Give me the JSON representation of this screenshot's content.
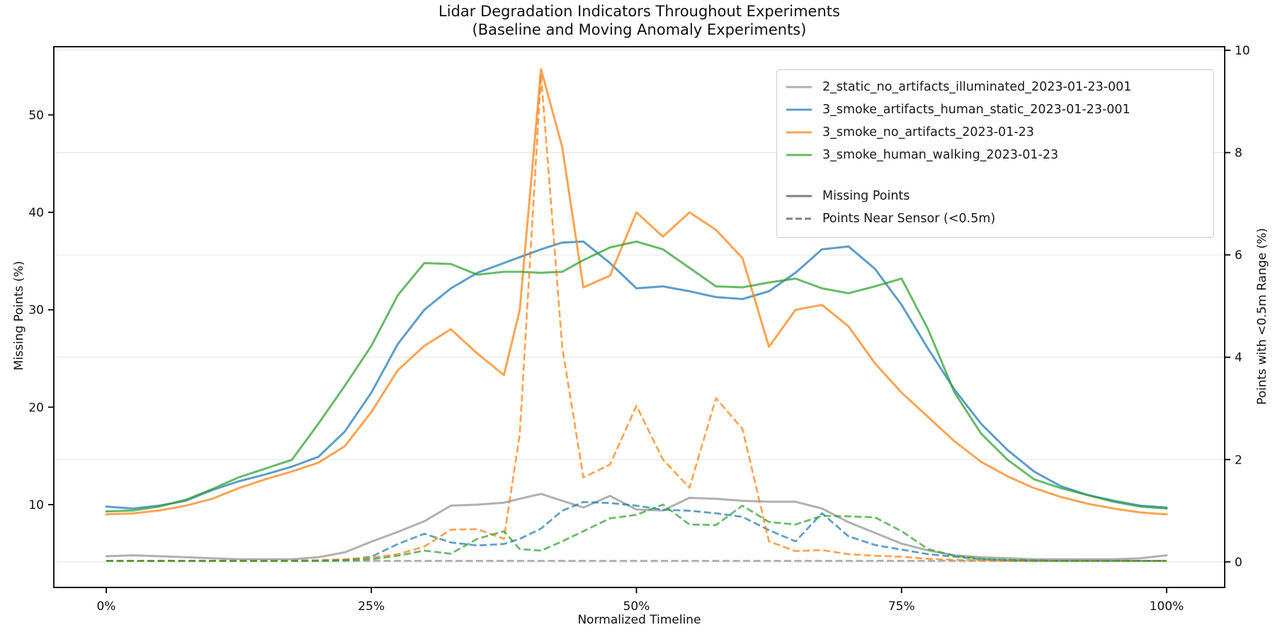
{
  "chart_data": {
    "type": "line",
    "title": "Lidar Degradation Indicators Throughout Experiments",
    "subtitle": "(Baseline and Moving Anomaly Experiments)",
    "xlabel": "Normalized Timeline",
    "ylabel_left": "Missing Points (%)",
    "ylabel_right": "Points with <0.5m Range (%)",
    "x_tick_labels": [
      "0%",
      "25%",
      "50%",
      "75%",
      "100%"
    ],
    "x_tick_values": [
      0,
      25,
      50,
      75,
      100
    ],
    "y_left_ticks": [
      10,
      20,
      30,
      40,
      50
    ],
    "y_left_range": [
      1.5,
      57.0
    ],
    "y_right_ticks": [
      0,
      2,
      4,
      6,
      8,
      10
    ],
    "y_right_range": [
      -0.5,
      10.07
    ],
    "grid": "horizontal gridlines aligned to right-axis ticks",
    "legend_position": "upper right",
    "style_legend": [
      {
        "label": "Missing Points",
        "style": "solid",
        "color": "#808080"
      },
      {
        "label": "Points Near Sensor (<0.5m)",
        "style": "dashed",
        "color": "#808080"
      }
    ],
    "x": [
      0,
      2.5,
      5,
      7.5,
      10,
      12.5,
      15,
      17.5,
      20,
      22.5,
      25,
      27.5,
      30,
      32.5,
      35,
      37.5,
      39,
      41,
      43,
      45,
      47.5,
      50,
      52.5,
      55,
      57.5,
      60,
      62.5,
      65,
      67.5,
      70,
      72.5,
      75,
      77.5,
      80,
      82.5,
      85,
      87.5,
      90,
      92.5,
      95,
      97.5,
      100
    ],
    "series": [
      {
        "name": "2_static_no_artifacts_illuminated_2023-01-23-001",
        "color": "#7f7f7f",
        "opacity": 0.62,
        "missing_points": [
          4.7,
          4.8,
          4.7,
          4.6,
          4.5,
          4.4,
          4.4,
          4.4,
          4.6,
          5.1,
          6.2,
          7.2,
          8.3,
          9.9,
          10.0,
          10.2,
          10.6,
          11.1,
          10.4,
          9.7,
          10.9,
          9.5,
          9.4,
          10.7,
          10.6,
          10.4,
          10.3,
          10.3,
          9.6,
          8.2,
          7.1,
          6.0,
          5.3,
          4.8,
          4.6,
          4.5,
          4.4,
          4.4,
          4.4,
          4.4,
          4.5,
          4.8
        ],
        "points_near_sensor": [
          0.02,
          0.02,
          0.02,
          0.02,
          0.02,
          0.02,
          0.02,
          0.02,
          0.02,
          0.02,
          0.02,
          0.02,
          0.02,
          0.02,
          0.02,
          0.02,
          0.02,
          0.02,
          0.02,
          0.02,
          0.02,
          0.02,
          0.02,
          0.02,
          0.02,
          0.02,
          0.02,
          0.02,
          0.02,
          0.02,
          0.02,
          0.02,
          0.02,
          0.02,
          0.02,
          0.02,
          0.02,
          0.02,
          0.02,
          0.02,
          0.02,
          0.02
        ]
      },
      {
        "name": "3_smoke_artifacts_human_static_2023-01-23-001",
        "color": "#1f77b4",
        "opacity": 0.72,
        "missing_points": [
          9.8,
          9.6,
          9.9,
          10.4,
          11.5,
          12.4,
          13.1,
          13.9,
          14.9,
          17.5,
          21.5,
          26.5,
          30.0,
          32.2,
          33.8,
          34.8,
          35.4,
          36.2,
          36.9,
          37.0,
          34.8,
          32.2,
          32.4,
          31.9,
          31.3,
          31.1,
          31.9,
          33.8,
          36.2,
          36.5,
          34.2,
          30.5,
          26.0,
          21.8,
          18.3,
          15.6,
          13.4,
          11.9,
          11.0,
          10.4,
          9.9,
          9.7
        ],
        "points_near_sensor": [
          0.02,
          0.02,
          0.02,
          0.02,
          0.02,
          0.02,
          0.02,
          0.02,
          0.03,
          0.04,
          0.1,
          0.35,
          0.55,
          0.38,
          0.32,
          0.35,
          0.45,
          0.65,
          1.0,
          1.17,
          1.15,
          1.1,
          1.02,
          1.0,
          0.95,
          0.88,
          0.62,
          0.4,
          0.95,
          0.5,
          0.33,
          0.24,
          0.15,
          0.1,
          0.05,
          0.03,
          0.02,
          0.02,
          0.02,
          0.02,
          0.02,
          0.02
        ]
      },
      {
        "name": "3_smoke_no_artifacts_2023-01-23",
        "color": "#ff7f0e",
        "opacity": 0.72,
        "missing_points": [
          9.0,
          9.1,
          9.4,
          9.9,
          10.6,
          11.7,
          12.6,
          13.4,
          14.3,
          16.0,
          19.5,
          23.8,
          26.3,
          28.0,
          25.5,
          23.3,
          30.0,
          54.7,
          46.7,
          32.3,
          33.5,
          40.0,
          37.5,
          40.0,
          38.2,
          35.3,
          26.2,
          30.0,
          30.5,
          28.3,
          24.5,
          21.5,
          19.0,
          16.5,
          14.4,
          12.9,
          11.7,
          10.8,
          10.1,
          9.6,
          9.2,
          9.0
        ],
        "points_near_sensor": [
          0.02,
          0.02,
          0.02,
          0.02,
          0.02,
          0.02,
          0.02,
          0.02,
          0.03,
          0.05,
          0.08,
          0.15,
          0.3,
          0.63,
          0.64,
          0.45,
          2.5,
          9.53,
          4.2,
          1.65,
          1.9,
          3.05,
          2.0,
          1.45,
          3.2,
          2.6,
          0.4,
          0.21,
          0.23,
          0.15,
          0.12,
          0.1,
          0.06,
          0.04,
          0.03,
          0.02,
          0.02,
          0.02,
          0.02,
          0.02,
          0.02,
          0.02
        ]
      },
      {
        "name": "3_smoke_human_walking_2023-01-23",
        "color": "#2ca02c",
        "opacity": 0.72,
        "missing_points": [
          9.3,
          9.4,
          9.8,
          10.5,
          11.6,
          12.8,
          13.7,
          14.6,
          18.3,
          22.2,
          26.3,
          31.5,
          34.8,
          34.7,
          33.6,
          33.9,
          33.9,
          33.8,
          33.9,
          35.1,
          36.4,
          37.0,
          36.2,
          34.3,
          32.4,
          32.3,
          32.8,
          33.2,
          32.2,
          31.7,
          32.4,
          33.2,
          28.0,
          21.5,
          17.3,
          14.6,
          12.6,
          11.7,
          11.0,
          10.3,
          9.8,
          9.6
        ],
        "points_near_sensor": [
          0.02,
          0.02,
          0.02,
          0.02,
          0.02,
          0.02,
          0.02,
          0.02,
          0.02,
          0.03,
          0.05,
          0.12,
          0.22,
          0.16,
          0.45,
          0.6,
          0.25,
          0.22,
          0.4,
          0.6,
          0.85,
          0.92,
          1.12,
          0.73,
          0.72,
          1.1,
          0.78,
          0.73,
          0.9,
          0.89,
          0.87,
          0.6,
          0.25,
          0.12,
          0.06,
          0.04,
          0.03,
          0.02,
          0.02,
          0.02,
          0.02,
          0.02
        ]
      }
    ]
  }
}
